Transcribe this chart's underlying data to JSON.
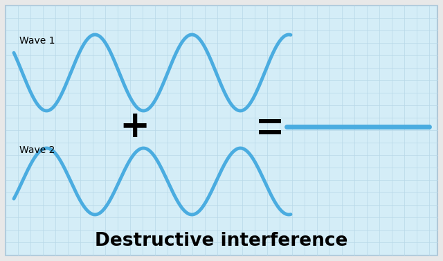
{
  "title": "Destructive interference",
  "title_fontsize": 19,
  "title_fontweight": "bold",
  "wave1_label": "Wave 1",
  "wave2_label": "Wave 2",
  "wave_color": "#4aace0",
  "background_color": "#d4edf7",
  "outer_color": "#e8e8e8",
  "grid_color": "#b8d8e8",
  "wave_linewidth": 3.5,
  "result_linewidth": 4.0,
  "label_fontsize": 10,
  "plus_fontsize": 38,
  "figwidth": 6.4,
  "figheight": 3.77,
  "dpi": 100
}
